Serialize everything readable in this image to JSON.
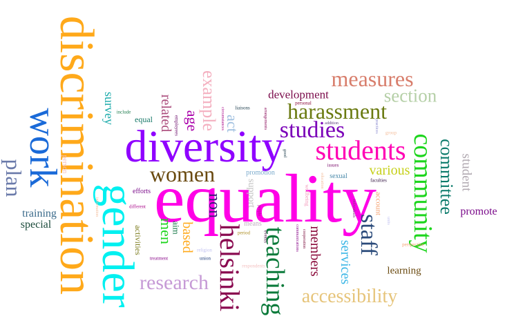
{
  "words": [
    {
      "text": "equality",
      "color": "#ff00e6"
    },
    {
      "text": "diversity",
      "color": "#8f00ff"
    },
    {
      "text": "discrimination",
      "color": "#ffa91a"
    },
    {
      "text": "gender",
      "color": "#00f0f0"
    },
    {
      "text": "work",
      "color": "#1a6ad8"
    },
    {
      "text": "students",
      "color": "#ff00b4"
    },
    {
      "text": "community",
      "color": "#1dd51d"
    },
    {
      "text": "studies",
      "color": "#7a00b8"
    },
    {
      "text": "harassment",
      "color": "#6a7a10"
    },
    {
      "text": "measures",
      "color": "#d87e6c"
    },
    {
      "text": "section",
      "color": "#b6d0a8"
    },
    {
      "text": "women",
      "color": "#6a4a10"
    },
    {
      "text": "helsinki",
      "color": "#8a0a50"
    },
    {
      "text": "teaching",
      "color": "#0a7a3a"
    },
    {
      "text": "staff",
      "color": "#2a4a7a"
    },
    {
      "text": "research",
      "color": "#c69ad6"
    },
    {
      "text": "accessibility",
      "color": "#e6c47a"
    },
    {
      "text": "committee",
      "color": "#0a7a6a"
    },
    {
      "text": "plan",
      "color": "#6a7aaa"
    },
    {
      "text": "example",
      "color": "#f4b0c0"
    },
    {
      "text": "development",
      "color": "#7a0a4a"
    },
    {
      "text": "various",
      "color": "#c6d01a"
    },
    {
      "text": "student",
      "color": "#b0a8b0"
    },
    {
      "text": "services",
      "color": "#3ab6e6"
    },
    {
      "text": "members",
      "color": "#8a0a3a"
    },
    {
      "text": "non",
      "color": "#3a1a7a"
    },
    {
      "text": "age",
      "color": "#aa00aa"
    },
    {
      "text": "related",
      "color": "#aa4a7a"
    },
    {
      "text": "act",
      "color": "#a0c0e0"
    },
    {
      "text": "survey",
      "color": "#1aaaaa"
    },
    {
      "text": "training",
      "color": "#3a6a8a"
    },
    {
      "text": "special",
      "color": "#1a4a3a"
    },
    {
      "text": "promote",
      "color": "#7a0a8a"
    },
    {
      "text": "learning",
      "color": "#6a4a10"
    },
    {
      "text": "based",
      "color": "#ffa91a"
    },
    {
      "text": "men",
      "color": "#1dd51d"
    },
    {
      "text": "aim",
      "color": "#1a7a4a"
    },
    {
      "text": "activities",
      "color": "#7a7a1a"
    },
    {
      "text": "equal",
      "color": "#1a7a6a"
    },
    {
      "text": "support",
      "color": "#c0c0c0"
    },
    {
      "text": "promotion",
      "color": "#7aaacc"
    },
    {
      "text": "sexual",
      "color": "#4a8aaa"
    },
    {
      "text": "account",
      "color": "#f4a070"
    },
    {
      "text": "efforts",
      "color": "#7a0a8a"
    },
    {
      "text": "means",
      "color": "#c0b0c0"
    },
    {
      "text": "person",
      "color": "#f4c0c0"
    },
    {
      "text": "different",
      "color": "#aa0a8a"
    },
    {
      "text": "treatment",
      "color": "#8a0a8a"
    },
    {
      "text": "union",
      "color": "#1a3a7a"
    },
    {
      "text": "period",
      "color": "#aa8a1a"
    },
    {
      "text": "events",
      "color": "#3a0a3a"
    },
    {
      "text": "respondents",
      "color": "#f4c0c0"
    },
    {
      "text": "perspective",
      "color": "#f4a070"
    },
    {
      "text": "religion",
      "color": "#c0c0f0"
    },
    {
      "text": "employees",
      "color": "#6a0a6a"
    },
    {
      "text": "include",
      "color": "#1a7a4a"
    },
    {
      "text": "circumstances",
      "color": "#aa0a8a"
    },
    {
      "text": "liaisons",
      "color": "#1a3a4a"
    },
    {
      "text": "arrangements",
      "color": "#8a0a5a"
    },
    {
      "text": "personal",
      "color": "#8a0a3a"
    },
    {
      "text": "addition",
      "color": "#5a3a7a"
    },
    {
      "text": "good",
      "color": "#1a3a4a"
    },
    {
      "text": "education",
      "color": "#f4c0a0"
    },
    {
      "text": "issues",
      "color": "#7a0a6a"
    },
    {
      "text": "faculties",
      "color": "#2a0a3a"
    },
    {
      "text": "practices",
      "color": "#8a8ad0"
    },
    {
      "text": "group",
      "color": "#f4c0a0"
    },
    {
      "text": "wellbeing",
      "color": "#f4a0c0"
    },
    {
      "text": "individuals",
      "color": "#8a3a8a"
    },
    {
      "text": "communications",
      "color": "#8a0a8a"
    },
    {
      "text": "cooperation",
      "color": "#7a0a3a"
    },
    {
      "text": "units",
      "color": "#c0c0f0"
    },
    {
      "text": "people",
      "color": "#aa0a8a"
    },
    {
      "text": "information",
      "color": "#f4c0a0"
    }
  ]
}
